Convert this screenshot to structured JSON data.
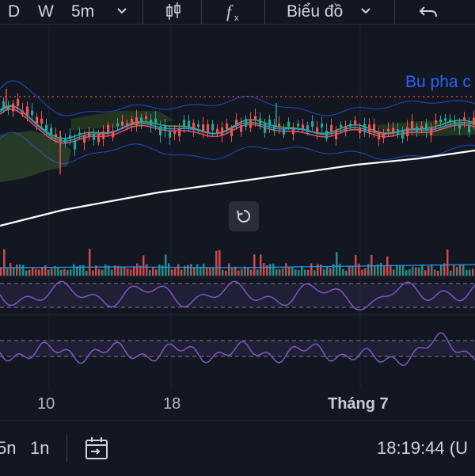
{
  "toolbar": {
    "interval_d": "D",
    "interval_w": "W",
    "interval_current": "5m",
    "chart_type_label": "Biểu đồ",
    "icons": [
      "chevron-down-icon",
      "candles-icon",
      "fx-indicator-icon",
      "undo-icon"
    ]
  },
  "overlay": {
    "indicator_label": "Bu pha c"
  },
  "time_axis": {
    "labels": [
      "10",
      "18",
      "Tháng 7"
    ]
  },
  "bottom_bar": {
    "range_a": "5n",
    "range_b": "1n",
    "clock": "18:19:44 (U",
    "icons": [
      "calendar-goto-icon"
    ]
  },
  "colors": {
    "background": "#131722",
    "bull": "#26a69a",
    "bear": "#ef5350",
    "osc_line": "#7e57c2",
    "ma_long": "#ffffff",
    "accent_blue": "#2962ff"
  },
  "chart_data": {
    "type": "candlestick",
    "panes": [
      "price",
      "volume",
      "oscillator-1",
      "oscillator-2"
    ],
    "x_tick_labels": [
      "10",
      "18",
      "Tháng 7"
    ],
    "indicators": [
      "bollinger-bands",
      "ichimoku-cloud",
      "moving-averages",
      "volume",
      "oscillator",
      "oscillator"
    ]
  }
}
